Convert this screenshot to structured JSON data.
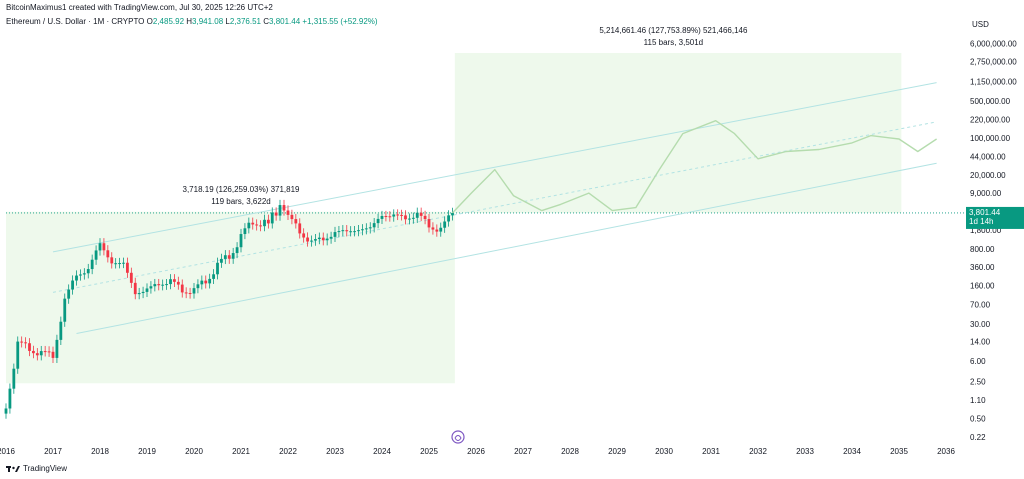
{
  "header": {
    "credit": "BitcoinMaximus1 created with TradingView.com, Jul 30, 2025 12:26 UTC+2",
    "symbol": "Ethereum / U.S. Dollar · 1M · CRYPTO",
    "open_label": "O",
    "open": "2,485.92",
    "high_label": "H",
    "high": "3,941.08",
    "low_label": "L",
    "low": "2,376.51",
    "close_label": "C",
    "close": "3,801.44",
    "change": "+1,315.55 (+52.92%)"
  },
  "axis": {
    "currency": "USD"
  },
  "price_label": {
    "price": "3,801.44",
    "countdown": "1d 14h"
  },
  "footer": {
    "brand": "TradingView"
  },
  "colors": {
    "up": "#089981",
    "down": "#f23645",
    "channel": "#b2e3e3",
    "projection": "#b5dcae",
    "range_fill": "#eef9ec"
  },
  "chart_data": {
    "type": "candlestick",
    "y_scale": "log",
    "ylim": [
      0.15,
      20000000
    ],
    "xlim": [
      "2016-01",
      "2036-01"
    ],
    "y_ticks": [
      {
        "v": 6000000,
        "label": "6,000,000.00"
      },
      {
        "v": 2750000,
        "label": "2,750,000.00"
      },
      {
        "v": 1150000,
        "label": "1,150,000.00"
      },
      {
        "v": 500000,
        "label": "500,000.00"
      },
      {
        "v": 220000,
        "label": "220,000.00"
      },
      {
        "v": 100000,
        "label": "100,000.00"
      },
      {
        "v": 44000,
        "label": "44,000.00"
      },
      {
        "v": 20000,
        "label": "20,000.00"
      },
      {
        "v": 9000,
        "label": "9,000.00"
      },
      {
        "v": 1800,
        "label": "1,800.00"
      },
      {
        "v": 800,
        "label": "800.00"
      },
      {
        "v": 360,
        "label": "360.00"
      },
      {
        "v": 160,
        "label": "160.00"
      },
      {
        "v": 70,
        "label": "70.00"
      },
      {
        "v": 30,
        "label": "30.00"
      },
      {
        "v": 14,
        "label": "14.00"
      },
      {
        "v": 6,
        "label": "6.00"
      },
      {
        "v": 2.5,
        "label": "2.50"
      },
      {
        "v": 1.1,
        "label": "1.10"
      },
      {
        "v": 0.5,
        "label": "0.50"
      },
      {
        "v": 0.22,
        "label": "0.22"
      }
    ],
    "x_ticks": [
      {
        "t": 2016,
        "label": "2016"
      },
      {
        "t": 2017,
        "label": "2017"
      },
      {
        "t": 2018,
        "label": "2018"
      },
      {
        "t": 2019,
        "label": "2019"
      },
      {
        "t": 2020,
        "label": "2020"
      },
      {
        "t": 2021,
        "label": "2021"
      },
      {
        "t": 2022,
        "label": "2022"
      },
      {
        "t": 2023,
        "label": "2023"
      },
      {
        "t": 2024,
        "label": "2024"
      },
      {
        "t": 2025,
        "label": "2025"
      },
      {
        "t": 2026,
        "label": "2026"
      },
      {
        "t": 2027,
        "label": "2027"
      },
      {
        "t": 2028,
        "label": "2028"
      },
      {
        "t": 2029,
        "label": "2029"
      },
      {
        "t": 2030,
        "label": "2030"
      },
      {
        "t": 2031,
        "label": "2031"
      },
      {
        "t": 2032,
        "label": "2032"
      },
      {
        "t": 2033,
        "label": "2033"
      },
      {
        "t": 2034,
        "label": "2034"
      },
      {
        "t": 2035,
        "label": "2035"
      },
      {
        "t": 2036,
        "label": "2036"
      }
    ],
    "last_price": 3801.44,
    "candles": [
      {
        "t": 2016.0,
        "c": 0.9
      },
      {
        "t": 2016.25,
        "c": 12
      },
      {
        "t": 2016.5,
        "c": 11
      },
      {
        "t": 2016.75,
        "c": 8
      },
      {
        "t": 2017.0,
        "c": 8
      },
      {
        "t": 2017.25,
        "c": 80
      },
      {
        "t": 2017.5,
        "c": 280
      },
      {
        "t": 2017.75,
        "c": 300
      },
      {
        "t": 2018.0,
        "c": 1100
      },
      {
        "t": 2018.25,
        "c": 400
      },
      {
        "t": 2018.5,
        "c": 450
      },
      {
        "t": 2018.75,
        "c": 110
      },
      {
        "t": 2019.0,
        "c": 140
      },
      {
        "t": 2019.25,
        "c": 170
      },
      {
        "t": 2019.5,
        "c": 200
      },
      {
        "t": 2019.75,
        "c": 130
      },
      {
        "t": 2020.0,
        "c": 130
      },
      {
        "t": 2020.25,
        "c": 200
      },
      {
        "t": 2020.5,
        "c": 380
      },
      {
        "t": 2020.75,
        "c": 600
      },
      {
        "t": 2021.0,
        "c": 1300
      },
      {
        "t": 2021.25,
        "c": 2700
      },
      {
        "t": 2021.5,
        "c": 2400
      },
      {
        "t": 2021.83,
        "c": 4600
      },
      {
        "t": 2022.0,
        "c": 3000
      },
      {
        "t": 2022.25,
        "c": 1800
      },
      {
        "t": 2022.5,
        "c": 1000
      },
      {
        "t": 2022.75,
        "c": 1300
      },
      {
        "t": 2023.0,
        "c": 1500
      },
      {
        "t": 2023.25,
        "c": 1850
      },
      {
        "t": 2023.5,
        "c": 1700
      },
      {
        "t": 2023.75,
        "c": 2100
      },
      {
        "t": 2024.0,
        "c": 3300
      },
      {
        "t": 2024.25,
        "c": 3500
      },
      {
        "t": 2024.5,
        "c": 3000
      },
      {
        "t": 2024.75,
        "c": 3600
      },
      {
        "t": 2025.0,
        "c": 2200
      },
      {
        "t": 2025.25,
        "c": 1800
      },
      {
        "t": 2025.5,
        "c": 3801.44
      }
    ],
    "projection": [
      {
        "t": 2025.5,
        "v": 3800
      },
      {
        "t": 2025.9,
        "v": 9000
      },
      {
        "t": 2026.4,
        "v": 25000
      },
      {
        "t": 2026.8,
        "v": 8000
      },
      {
        "t": 2027.4,
        "v": 4200
      },
      {
        "t": 2027.8,
        "v": 5500
      },
      {
        "t": 2028.4,
        "v": 9000
      },
      {
        "t": 2028.9,
        "v": 4200
      },
      {
        "t": 2029.4,
        "v": 4800
      },
      {
        "t": 2029.9,
        "v": 25000
      },
      {
        "t": 2030.4,
        "v": 120000
      },
      {
        "t": 2031.1,
        "v": 210000
      },
      {
        "t": 2031.5,
        "v": 120000
      },
      {
        "t": 2032.0,
        "v": 40000
      },
      {
        "t": 2032.6,
        "v": 55000
      },
      {
        "t": 2033.3,
        "v": 60000
      },
      {
        "t": 2034.0,
        "v": 80000
      },
      {
        "t": 2034.4,
        "v": 110000
      },
      {
        "t": 2035.0,
        "v": 95000
      },
      {
        "t": 2035.4,
        "v": 55000
      },
      {
        "t": 2035.8,
        "v": 95000
      }
    ],
    "channel": {
      "upper": [
        {
          "t": 2017.0,
          "v": 700
        },
        {
          "t": 2035.8,
          "v": 1100000
        }
      ],
      "middle": [
        {
          "t": 2017.0,
          "v": 120
        },
        {
          "t": 2035.8,
          "v": 200000
        }
      ],
      "lower": [
        {
          "t": 2017.5,
          "v": 20
        },
        {
          "t": 2035.8,
          "v": 33000
        }
      ]
    },
    "annotations": [
      {
        "line1": "3,718.19 (126,259.03%) 371,819",
        "line2": "119 bars, 3,622d",
        "t": 2021.0
      },
      {
        "line1": "5,214,661.46 (127,753.89%) 521,466,146",
        "line2": "115 bars, 3,501d",
        "t": 2030.2
      }
    ]
  }
}
